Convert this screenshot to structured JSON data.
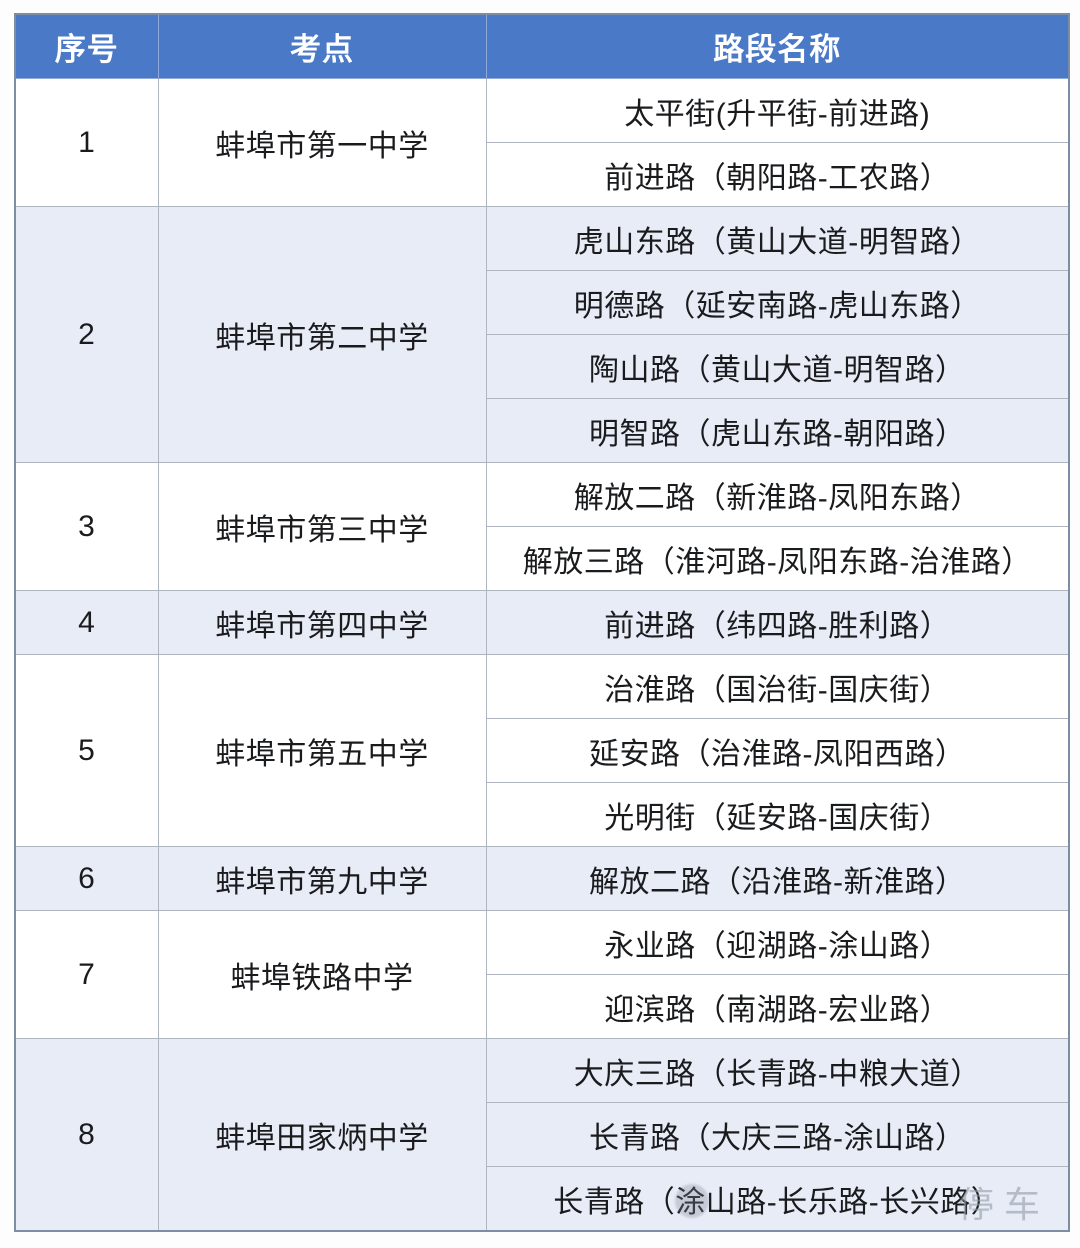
{
  "table": {
    "headers": [
      "序号",
      "考点",
      "路段名称"
    ],
    "groups": [
      {
        "no": "1",
        "school": "蚌埠市第一中学",
        "roads": [
          "太平街(升平街-前进路)",
          "前进路（朝阳路-工农路）"
        ]
      },
      {
        "no": "2",
        "school": "蚌埠市第二中学",
        "roads": [
          "虎山东路（黄山大道-明智路）",
          "明德路（延安南路-虎山东路）",
          "陶山路（黄山大道-明智路）",
          "明智路（虎山东路-朝阳路）"
        ]
      },
      {
        "no": "3",
        "school": "蚌埠市第三中学",
        "roads": [
          "解放二路（新淮路-凤阳东路）",
          "解放三路（淮河路-凤阳东路-治淮路）"
        ]
      },
      {
        "no": "4",
        "school": "蚌埠市第四中学",
        "roads": [
          "前进路（纬四路-胜利路）"
        ]
      },
      {
        "no": "5",
        "school": "蚌埠市第五中学",
        "roads": [
          "治淮路（国治街-国庆街）",
          "延安路（治淮路-凤阳西路）",
          "光明街（延安路-国庆街）"
        ]
      },
      {
        "no": "6",
        "school": "蚌埠市第九中学",
        "roads": [
          "解放二路（沿淮路-新淮路）"
        ]
      },
      {
        "no": "7",
        "school": "蚌埠铁路中学",
        "roads": [
          "永业路（迎湖路-涂山路）",
          "迎滨路（南湖路-宏业路）"
        ]
      },
      {
        "no": "8",
        "school": "蚌埠田家炳中学",
        "roads": [
          "大庆三路（长青路-中粮大道）",
          "长青路（大庆三路-涂山路）",
          "长青路（涂山路-长乐路-长兴路）"
        ]
      }
    ]
  },
  "watermark": {
    "text": "停车"
  },
  "colors": {
    "header_bg": "#4a79c7",
    "header_text": "#ffffff",
    "header_line": "#8fa9da",
    "row_bg": "#ffffff",
    "alt_row_bg": "#e8ecf7",
    "grid_line": "#aeb5c0",
    "outer_border": "#7d8da3",
    "body_text": "#1a1b1d"
  }
}
